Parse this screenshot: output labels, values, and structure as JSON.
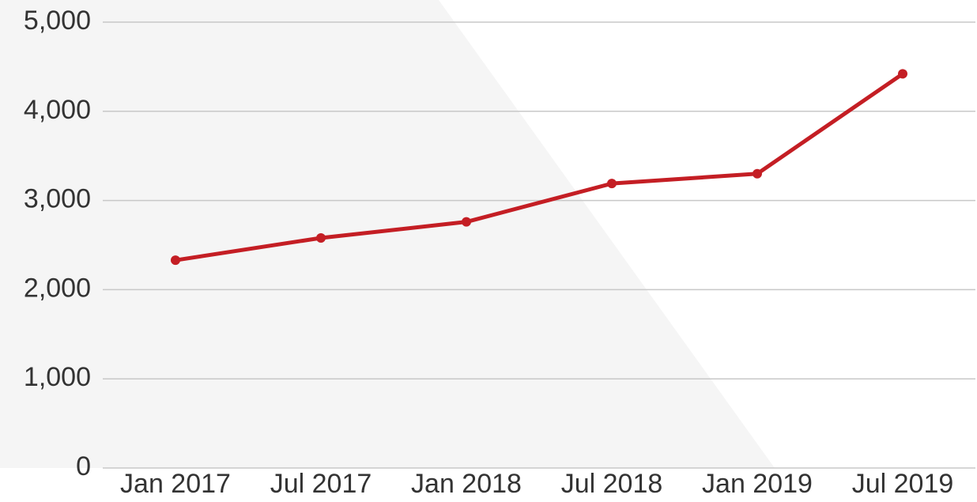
{
  "chart_data": {
    "type": "line",
    "categories": [
      "Jan 2017",
      "Jul 2017",
      "Jan 2018",
      "Jul 2018",
      "Jan 2019",
      "Jul 2019"
    ],
    "series": [
      {
        "color": "#c41e24",
        "values": [
          2330,
          2580,
          2760,
          3190,
          3300,
          4420
        ]
      }
    ],
    "ylim": [
      0,
      5000
    ],
    "yticks": [
      0,
      {
        "value": 1000,
        "label": "1,000"
      },
      {
        "value": 2000,
        "label": "2,000"
      },
      {
        "value": 3000,
        "label": "3,000"
      },
      {
        "value": 4000,
        "label": "4,000"
      },
      {
        "value": 5000,
        "label": "5,000"
      }
    ],
    "grid": true
  }
}
